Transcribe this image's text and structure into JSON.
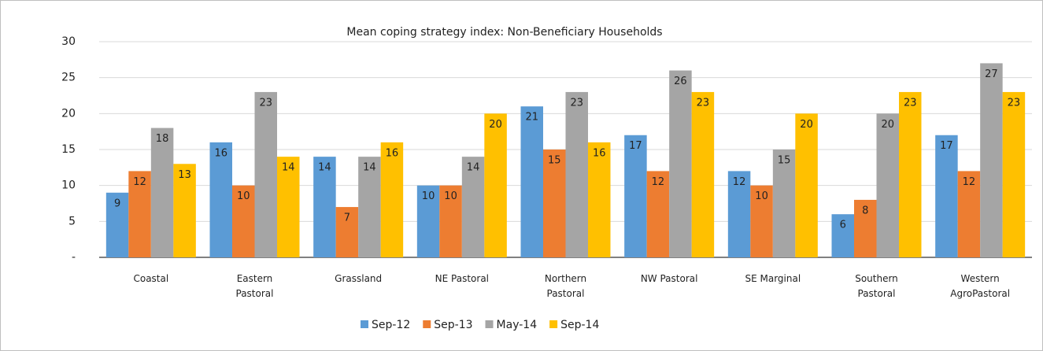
{
  "chart_data": {
    "type": "bar",
    "title": "Mean coping strategy index:  Non-Beneficiary Households",
    "categories": [
      "Coastal",
      "Eastern Pastoral",
      "Grassland",
      "NE Pastoral",
      "Northern Pastoral",
      "NW Pastoral",
      "SE Marginal",
      "Southern Pastoral",
      "Western AgroPastoral"
    ],
    "series": [
      {
        "name": "Sep-12",
        "color": "#5b9bd5",
        "values": [
          9,
          16,
          14,
          10,
          21,
          17,
          12,
          6,
          17
        ]
      },
      {
        "name": "Sep-13",
        "color": "#ed7d31",
        "values": [
          12,
          10,
          7,
          10,
          15,
          12,
          10,
          8,
          12
        ]
      },
      {
        "name": "May-14",
        "color": "#a5a5a5",
        "values": [
          18,
          23,
          14,
          14,
          23,
          26,
          15,
          20,
          27
        ]
      },
      {
        "name": "Sep-14",
        "color": "#ffc000",
        "values": [
          13,
          14,
          16,
          20,
          16,
          23,
          20,
          23,
          23
        ]
      }
    ],
    "ylim": [
      0,
      30
    ],
    "yticks": [
      {
        "value": 0,
        "label": "-"
      },
      5,
      10,
      15,
      20,
      25,
      30
    ],
    "grid": true,
    "legend": "bottom"
  }
}
